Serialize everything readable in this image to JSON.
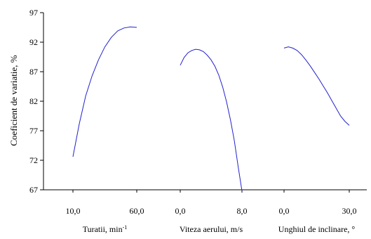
{
  "colors": {
    "curve": "#2222cc",
    "axis": "#000000",
    "background": "#ffffff"
  },
  "chart_data": {
    "type": "line",
    "title": "",
    "ylabel": "Coeficient de variatie, %",
    "ylim": [
      67,
      97
    ],
    "yticks": [
      "97",
      "92",
      "87",
      "82",
      "77",
      "72",
      "67"
    ],
    "grid": false,
    "panels": [
      {
        "xlabel": "Turatii, min",
        "xlabel_sup": "-1",
        "xticks": [
          "10,0",
          "60,0"
        ],
        "xlim": [
          10,
          60
        ],
        "x": [
          10,
          15,
          20,
          25,
          30,
          35,
          40,
          45,
          50,
          55,
          60
        ],
        "y": [
          72.6,
          78.2,
          82.9,
          86.3,
          89.0,
          91.2,
          92.8,
          93.9,
          94.4,
          94.6,
          94.5
        ]
      },
      {
        "xlabel": "Viteza aerului, m/s",
        "xticks": [
          "0,0",
          "8,0"
        ],
        "xlim": [
          0,
          8
        ],
        "x": [
          0,
          0.5,
          1,
          1.5,
          2,
          2.5,
          3,
          3.5,
          4,
          4.5,
          5,
          5.5,
          6,
          6.5,
          7,
          7.5,
          8
        ],
        "y": [
          88.1,
          89.4,
          90.2,
          90.6,
          90.8,
          90.7,
          90.4,
          89.8,
          89.0,
          87.9,
          86.4,
          84.4,
          81.9,
          78.9,
          75.4,
          71.0,
          66.8
        ]
      },
      {
        "xlabel": "Unghiul de inclinare, °",
        "xticks": [
          "0,0",
          "30,0"
        ],
        "xlim": [
          0,
          30
        ],
        "x": [
          0,
          2,
          4,
          6,
          8,
          10,
          12,
          14,
          16,
          18,
          20,
          22,
          24,
          26,
          28,
          30
        ],
        "y": [
          91.0,
          91.2,
          91.0,
          90.6,
          89.9,
          89.0,
          88.0,
          86.9,
          85.8,
          84.6,
          83.4,
          82.1,
          80.8,
          79.5,
          78.6,
          77.9
        ]
      }
    ]
  }
}
